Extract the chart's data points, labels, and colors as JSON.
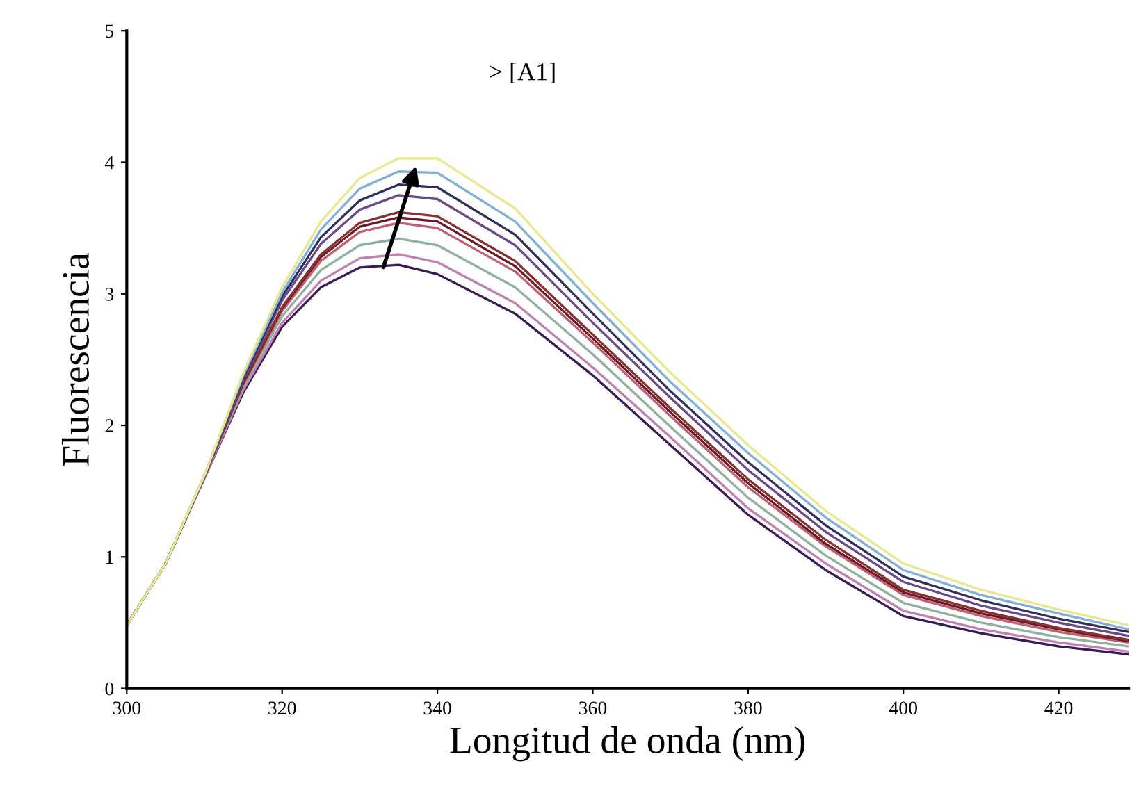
{
  "chart_data": {
    "type": "line",
    "xlabel": "Longitud de onda (nm)",
    "ylabel": "Fluorescencia",
    "x": [
      300,
      305,
      310,
      315,
      320,
      325,
      330,
      335,
      340,
      350,
      360,
      370,
      380,
      390,
      400,
      410,
      420,
      429
    ],
    "xlim": [
      300,
      429
    ],
    "xticks": [
      300,
      320,
      340,
      360,
      380,
      400,
      420
    ],
    "ylim": [
      0,
      5
    ],
    "yticks": [
      0,
      1,
      2,
      3,
      4,
      5
    ],
    "grid": false,
    "marker": "none",
    "line_style": "solid",
    "annotations": [
      "> [A1]"
    ],
    "series": [
      {
        "color": "#3b1a5a",
        "values": [
          0.48,
          0.95,
          1.6,
          2.25,
          2.75,
          3.05,
          3.2,
          3.22,
          3.15,
          2.85,
          2.38,
          1.85,
          1.32,
          0.9,
          0.55,
          0.42,
          0.32,
          0.26
        ]
      },
      {
        "color": "#c080b0",
        "values": [
          0.48,
          0.95,
          1.6,
          2.27,
          2.78,
          3.1,
          3.27,
          3.3,
          3.24,
          2.93,
          2.44,
          1.91,
          1.37,
          0.95,
          0.59,
          0.45,
          0.35,
          0.28
        ]
      },
      {
        "color": "#90b0a0",
        "values": [
          0.48,
          0.95,
          1.61,
          2.29,
          2.83,
          3.18,
          3.37,
          3.42,
          3.37,
          3.05,
          2.54,
          1.99,
          1.45,
          1.01,
          0.65,
          0.5,
          0.39,
          0.32
        ]
      },
      {
        "color": "#c06070",
        "values": [
          0.48,
          0.95,
          1.61,
          2.31,
          2.87,
          3.25,
          3.47,
          3.54,
          3.5,
          3.17,
          2.63,
          2.07,
          1.53,
          1.08,
          0.71,
          0.55,
          0.43,
          0.35
        ]
      },
      {
        "color": "#6b1a2a",
        "values": [
          0.48,
          0.95,
          1.61,
          2.32,
          2.89,
          3.28,
          3.51,
          3.58,
          3.55,
          3.21,
          2.66,
          2.1,
          1.56,
          1.1,
          0.73,
          0.57,
          0.45,
          0.36
        ]
      },
      {
        "color": "#8b3030",
        "values": [
          0.48,
          0.95,
          1.61,
          2.33,
          2.9,
          3.3,
          3.54,
          3.62,
          3.59,
          3.25,
          2.69,
          2.13,
          1.59,
          1.13,
          0.75,
          0.59,
          0.46,
          0.37
        ]
      },
      {
        "color": "#6a4a8a",
        "values": [
          0.48,
          0.95,
          1.61,
          2.35,
          2.95,
          3.38,
          3.64,
          3.75,
          3.72,
          3.37,
          2.78,
          2.21,
          1.66,
          1.19,
          0.81,
          0.63,
          0.5,
          0.4
        ]
      },
      {
        "color": "#303060",
        "values": [
          0.48,
          0.95,
          1.62,
          2.36,
          2.98,
          3.43,
          3.71,
          3.83,
          3.81,
          3.45,
          2.85,
          2.26,
          1.72,
          1.24,
          0.85,
          0.67,
          0.53,
          0.43
        ]
      },
      {
        "color": "#80b0d8",
        "values": [
          0.48,
          0.95,
          1.62,
          2.38,
          3.01,
          3.49,
          3.8,
          3.93,
          3.92,
          3.55,
          2.93,
          2.33,
          1.79,
          1.3,
          0.9,
          0.71,
          0.57,
          0.45
        ]
      },
      {
        "color": "#e8e890",
        "values": [
          0.48,
          0.95,
          1.62,
          2.4,
          3.05,
          3.55,
          3.88,
          4.03,
          4.03,
          3.65,
          3.0,
          2.4,
          1.85,
          1.35,
          0.95,
          0.75,
          0.6,
          0.48
        ]
      }
    ]
  }
}
